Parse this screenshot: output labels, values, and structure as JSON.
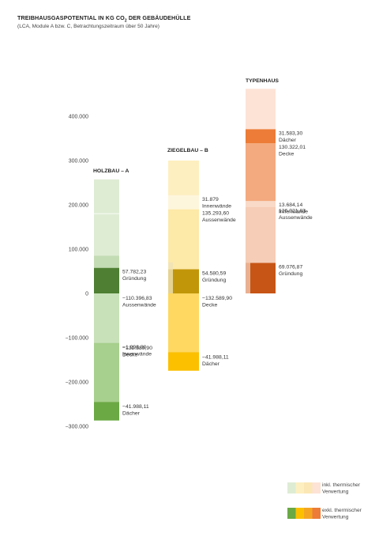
{
  "header": {
    "title_main": "TREIBHAUSGASPOTENTIAL IN KG CO",
    "title_sub": "2",
    "title_tail": " DER GEBÄUDEHÜLLE",
    "subtitle": "(LCA, Module A bzw. C, Betrachtungszeitraum über 50 Jahre)"
  },
  "chart_data": {
    "type": "bar",
    "subtype": "waterfall-stacked",
    "ytick_labels": [
      "400.000",
      "300.000",
      "200.000",
      "100.000",
      "0",
      "−100.000",
      "−200.000",
      "−300.000"
    ],
    "yticks": [
      400000,
      300000,
      200000,
      100000,
      0,
      -100000,
      -200000,
      -300000
    ],
    "ylim": [
      -300000,
      400000
    ],
    "grid": false,
    "columns": [
      {
        "name": "HOLZBAU – A",
        "color_light": "#deecd4",
        "color_dark_band": "#c4dcb4",
        "light_top": 257400,
        "segments": [
          {
            "value_label": "57.782,23",
            "label": "Gründung",
            "start": 0,
            "end": 57782.23,
            "color": "#4e7f33"
          },
          {
            "value_label": "−110.396,83",
            "label": "Aussenwände",
            "start": 0,
            "end": -110396.83,
            "color": "#c8e1b8"
          },
          {
            "value_label": "−1.998,00",
            "label": "Innenwände",
            "start": -110396.83,
            "end": -112394.83,
            "color": "#b9d9a6"
          },
          {
            "value_label": "−132.589,90",
            "label": "Decke",
            "start": -112394.83,
            "end": -244984.73,
            "color": "#a7cf8d"
          },
          {
            "value_label": "−41.988,11",
            "label": "Dächer",
            "start": -244984.73,
            "end": -286972.84,
            "color": "#6aa944"
          }
        ]
      },
      {
        "name": "ZIEGELBAU – B",
        "color_light": "#fdefc0",
        "light_top": 300000,
        "segments": [
          {
            "value_label": "54.580,59",
            "label": "Gründung",
            "start": 0,
            "end": 54580.59,
            "color": "#c19608"
          },
          {
            "value_label": "135.293,60",
            "label": "Aussenwände",
            "start": 54580.59,
            "end": 189874.19,
            "color": "#fde9a8"
          },
          {
            "value_label": "31.879",
            "label": "Innenwände",
            "start": 189874.19,
            "end": 221753.19,
            "color": "#fef6dc"
          },
          {
            "value_label": "−132.589,90",
            "label": "Decke",
            "start": 0,
            "end": -132589.9,
            "color": "#fed860"
          },
          {
            "value_label": "−41.988,11",
            "label": "Dächer",
            "start": -132589.9,
            "end": -174578.01,
            "color": "#fcc000"
          }
        ]
      },
      {
        "name": "TYPENHAUS",
        "color_light": "#fde3d6",
        "light_top": 462000,
        "segments": [
          {
            "value_label": "69.076,87",
            "label": "Gründung",
            "start": 0,
            "end": 69076.87,
            "color": "#c75515"
          },
          {
            "value_label": "126.021,83",
            "label": "Aussenwände",
            "start": 69076.87,
            "end": 195098.7,
            "color": "#f6cdb6"
          },
          {
            "value_label": "13.684,14",
            "label": "Innenwände",
            "start": 195098.7,
            "end": 208782.84,
            "color": "#f9d9c8"
          },
          {
            "value_label": "130.322,01",
            "label": "Decke",
            "start": 208782.84,
            "end": 339104.85,
            "color": "#f3aa7e"
          },
          {
            "value_label": "31.583,30",
            "label": "Dächer",
            "start": 339104.85,
            "end": 370688.15,
            "color": "#ec7c37"
          }
        ]
      }
    ],
    "legend": [
      {
        "label_line1": "inkl. thermischer",
        "label_line2": "Verwertung",
        "colors": [
          "#deecd4",
          "#fdefc0",
          "#fbe6b5",
          "#fde3d6"
        ]
      },
      {
        "label_line1": "exkl. thermischer",
        "label_line2": "Verwertung",
        "colors": [
          "#6aa944",
          "#fcc000",
          "#f4a623",
          "#ec7c37"
        ]
      }
    ]
  }
}
